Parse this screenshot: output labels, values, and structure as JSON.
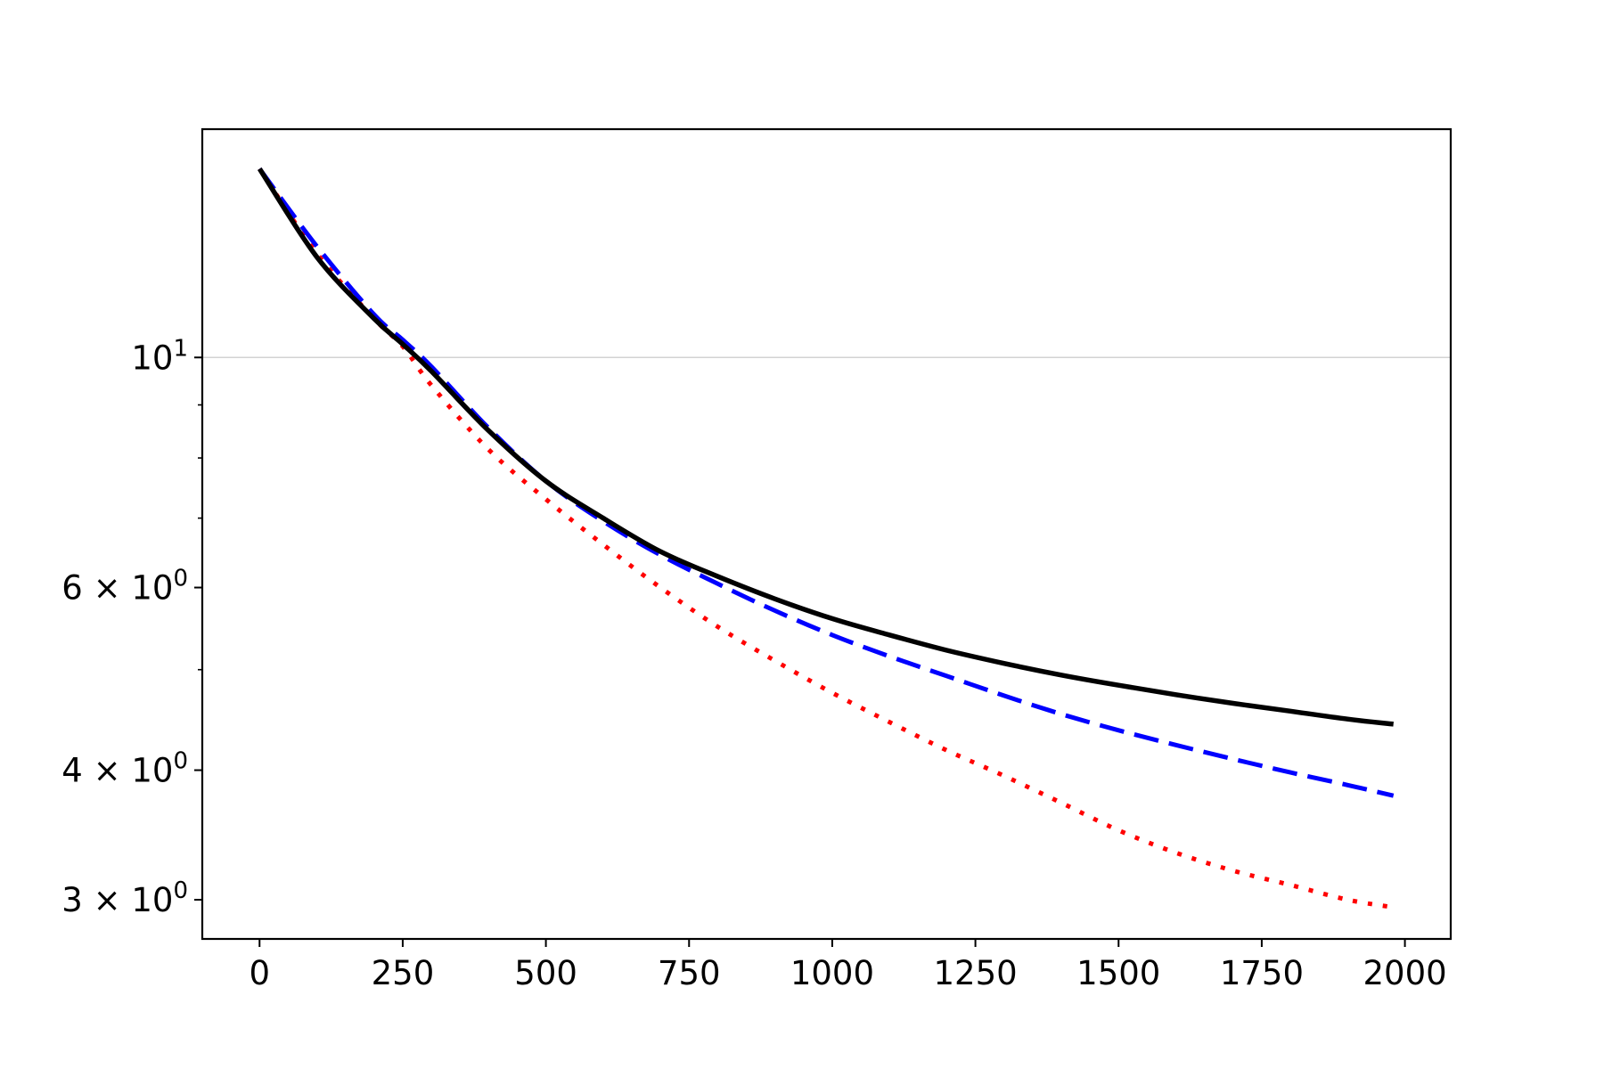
{
  "chart_data": {
    "type": "line",
    "title": "",
    "xlabel": "",
    "ylabel": "",
    "xlim": [
      -100,
      2080
    ],
    "ylim": [
      2.75,
      16.6
    ],
    "yscale": "log",
    "grid": "horizontal major only",
    "legend": "none",
    "x_ticks": [
      {
        "value": 0,
        "label": "0"
      },
      {
        "value": 250,
        "label": "250"
      },
      {
        "value": 500,
        "label": "500"
      },
      {
        "value": 750,
        "label": "750"
      },
      {
        "value": 1000,
        "label": "1000"
      },
      {
        "value": 1250,
        "label": "1250"
      },
      {
        "value": 1500,
        "label": "1500"
      },
      {
        "value": 1750,
        "label": "1750"
      },
      {
        "value": 2000,
        "label": "2000"
      }
    ],
    "y_ticks": [
      {
        "value": 10,
        "label": "10",
        "sup": "1"
      },
      {
        "value": 6,
        "label": "6 × 10",
        "sup": "0"
      },
      {
        "value": 4,
        "label": "4 × 10",
        "sup": "0"
      },
      {
        "value": 3,
        "label": "3 × 10",
        "sup": "0"
      }
    ],
    "y_minor_ticks": [
      5,
      7,
      8,
      9
    ],
    "series": [
      {
        "style": "dotted",
        "color": "#ff0000",
        "x": [
          0,
          100,
          200,
          250,
          300,
          400,
          500,
          600,
          700,
          800,
          900,
          1000,
          1100,
          1200,
          1300,
          1400,
          1500,
          1600,
          1700,
          1800,
          1900,
          1980
        ],
        "y": [
          15.2,
          12.6,
          10.9,
          10.25,
          9.4,
          8.15,
          7.3,
          6.6,
          6.0,
          5.5,
          5.1,
          4.75,
          4.45,
          4.18,
          3.95,
          3.72,
          3.5,
          3.33,
          3.2,
          3.1,
          3.0,
          2.95
        ]
      },
      {
        "style": "dashed",
        "color": "#0000ff",
        "x": [
          0,
          100,
          200,
          250,
          300,
          400,
          500,
          600,
          700,
          800,
          900,
          1000,
          1100,
          1200,
          1300,
          1400,
          1500,
          1600,
          1700,
          1800,
          1900,
          1980
        ],
        "y": [
          15.2,
          12.8,
          11.0,
          10.4,
          9.8,
          8.55,
          7.6,
          6.95,
          6.45,
          6.05,
          5.7,
          5.4,
          5.15,
          4.93,
          4.72,
          4.53,
          4.37,
          4.23,
          4.1,
          3.98,
          3.87,
          3.78
        ]
      },
      {
        "style": "solid",
        "color": "#000000",
        "x": [
          0,
          100,
          200,
          250,
          300,
          400,
          500,
          600,
          700,
          800,
          900,
          1000,
          1100,
          1200,
          1300,
          1400,
          1500,
          1600,
          1700,
          1800,
          1900,
          1980
        ],
        "y": [
          15.2,
          12.5,
          10.9,
          10.3,
          9.7,
          8.5,
          7.6,
          7.0,
          6.5,
          6.15,
          5.85,
          5.6,
          5.4,
          5.22,
          5.07,
          4.94,
          4.83,
          4.73,
          4.64,
          4.56,
          4.48,
          4.43
        ]
      }
    ]
  }
}
